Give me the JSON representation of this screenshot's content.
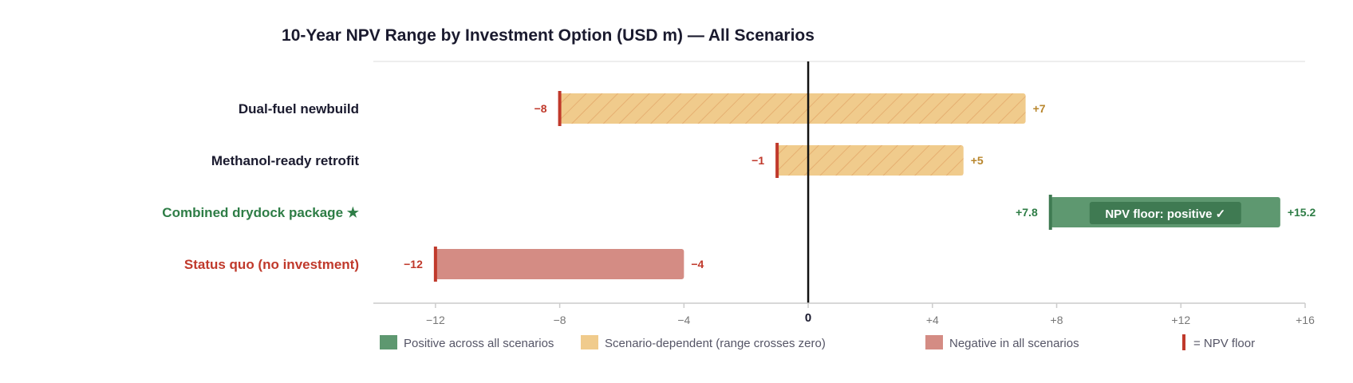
{
  "chart_data": {
    "type": "bar",
    "subtype": "floating-range",
    "title": "10-Year NPV Range by Investment Option (USD m) — All Scenarios",
    "xlabel": "",
    "ylabel": "",
    "xlim": [
      -14,
      16
    ],
    "ticks": [
      {
        "value": -12,
        "label": "−12"
      },
      {
        "value": -8,
        "label": "−8"
      },
      {
        "value": -4,
        "label": "−4"
      },
      {
        "value": 0,
        "label": "0"
      },
      {
        "value": 4,
        "label": "+4"
      },
      {
        "value": 8,
        "label": "+8"
      },
      {
        "value": 12,
        "label": "+12"
      },
      {
        "value": 16,
        "label": "+16"
      }
    ],
    "categories": [
      {
        "label": "Dual-fuel newbuild",
        "low": -8,
        "high": 7,
        "low_label": "−8",
        "high_label": "+7",
        "status": "mixed"
      },
      {
        "label": "Methanol-ready retrofit",
        "low": -1,
        "high": 5,
        "low_label": "−1",
        "high_label": "+5",
        "status": "mixed"
      },
      {
        "label": "Combined drydock package ★",
        "low": 7.8,
        "high": 15.2,
        "low_label": "+7.8",
        "high_label": "+15.2",
        "status": "positive",
        "badge": "NPV floor: positive ✓"
      },
      {
        "label": "Status quo (no investment)",
        "low": -12,
        "high": -4,
        "low_label": "−12",
        "high_label": "−4",
        "status": "negative"
      }
    ],
    "legend": [
      {
        "key": "positive",
        "label": "Positive across all scenarios"
      },
      {
        "key": "mixed",
        "label": "Scenario-dependent (range crosses zero)"
      },
      {
        "key": "negative",
        "label": "Negative in all scenarios"
      },
      {
        "key": "floor",
        "label": "= NPV floor"
      }
    ],
    "colors": {
      "positive_fill": "#5e9870",
      "positive_text": "#2e7d46",
      "badge_fill": "#3f7a52",
      "mixed_fill": "#f0cb8c",
      "mixed_hatch": "#e3a86a",
      "mixed_text": "#b8862c",
      "negative_fill": "#d48c84",
      "negative_text": "#c0392b",
      "floor_marker": "#c0392b",
      "category_default": "#1a1a2e",
      "axis": "#cccccc",
      "zero_line": "#111111"
    }
  }
}
